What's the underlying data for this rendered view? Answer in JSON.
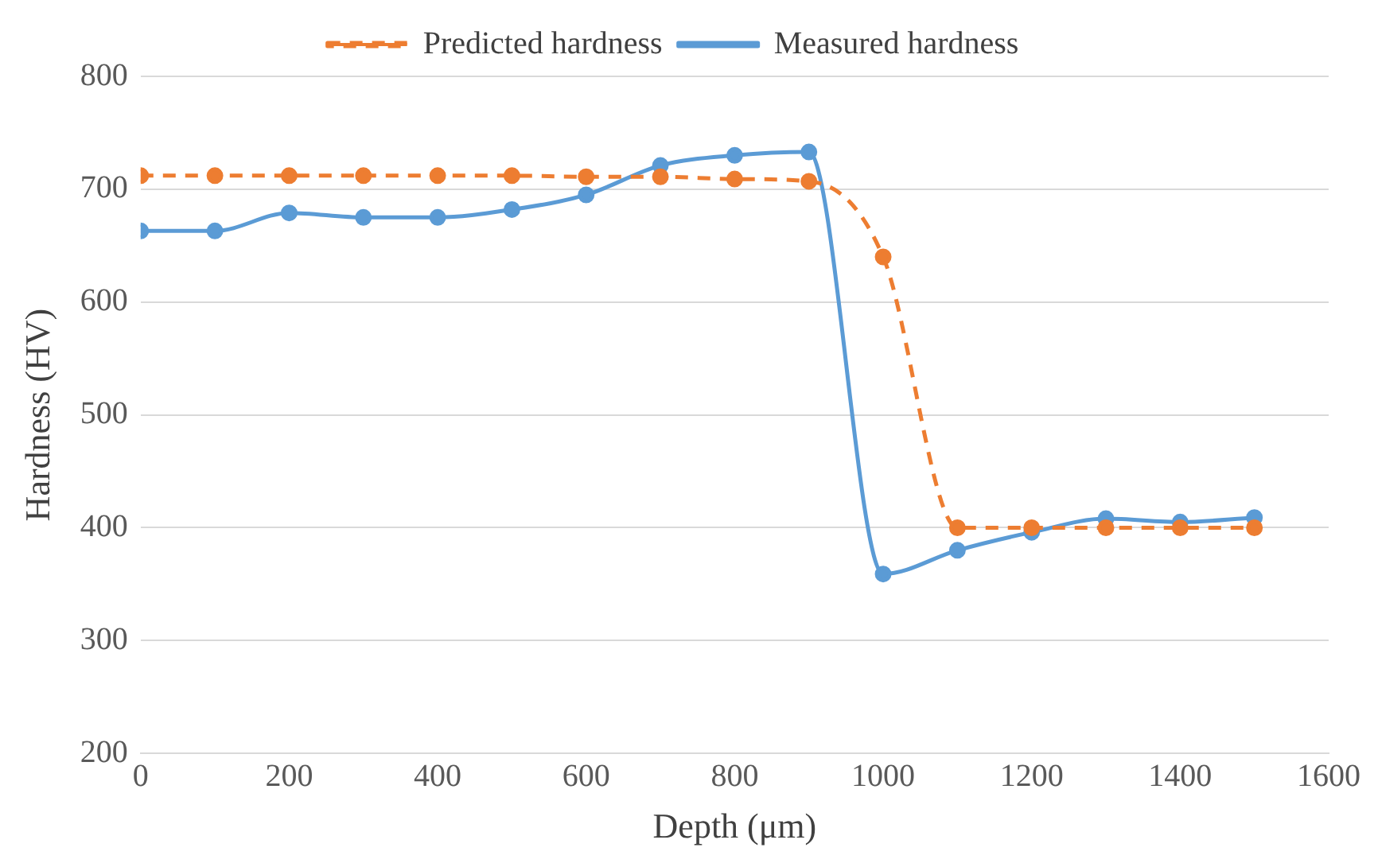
{
  "chart_data": {
    "type": "line",
    "xlabel": "Depth (μm)",
    "ylabel": "Hardness (HV)",
    "x": [
      0,
      100,
      200,
      300,
      400,
      500,
      600,
      700,
      800,
      900,
      1000,
      1100,
      1200,
      1300,
      1400,
      1500
    ],
    "series": [
      {
        "name": "Measured hardness",
        "color": "#5b9bd5",
        "line_style": "solid",
        "values": [
          663,
          663,
          679,
          675,
          675,
          682,
          695,
          721,
          730,
          733,
          359,
          380,
          396,
          408,
          405,
          409
        ]
      },
      {
        "name": "Predicted hardness",
        "color": "#ed7d31",
        "line_style": "dashed",
        "values": [
          712,
          712,
          712,
          712,
          712,
          712,
          711,
          711,
          709,
          707,
          640,
          400,
          400,
          400,
          400,
          400
        ]
      }
    ],
    "xlim": [
      0,
      1600
    ],
    "xticks": [
      0,
      200,
      400,
      600,
      800,
      1000,
      1200,
      1400,
      1600
    ],
    "ylim": [
      200,
      800
    ],
    "yticks": [
      200,
      300,
      400,
      500,
      600,
      700,
      800
    ],
    "grid": "y",
    "legend": "top",
    "marker": "circle"
  }
}
